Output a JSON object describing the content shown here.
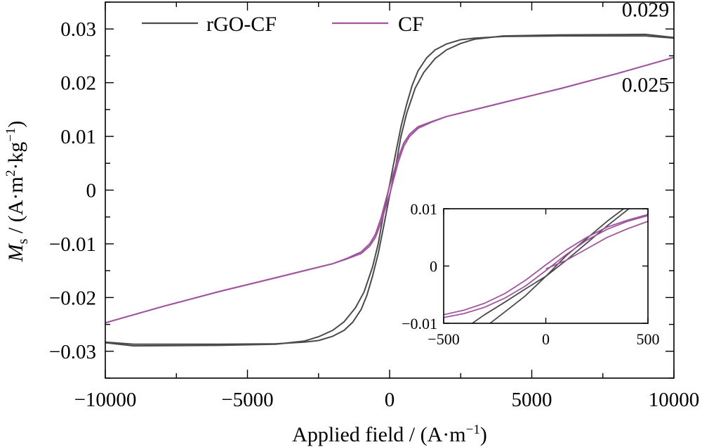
{
  "chart_data": {
    "type": "line",
    "title": "",
    "xlabel": "Applied field / (A·m⁻¹)",
    "ylabel": "Ms / (A·m²·kg⁻¹)",
    "ylabel_parts": {
      "symbol": "M",
      "symbol_sub": "s",
      "units_pre": " / (A·m",
      "sup1": "2",
      "units_mid": "·kg",
      "sup2": "−1",
      "units_post": ")"
    },
    "xlabel_parts": {
      "pre": "Applied field / (A·m",
      "sup": "−1",
      "post": ")"
    },
    "xlim": [
      -10000,
      10000
    ],
    "ylim": [
      -0.035,
      0.035
    ],
    "xticks": [
      -10000,
      -5000,
      0,
      5000,
      10000
    ],
    "xtick_labels": [
      "−10000",
      "−5000",
      "0",
      "5000",
      "10000"
    ],
    "yticks": [
      -0.03,
      -0.02,
      -0.01,
      0,
      0.01,
      0.02,
      0.03
    ],
    "ytick_labels": [
      "−0.03",
      "−0.02",
      "−0.01",
      "0",
      "0.01",
      "0.02",
      "0.03"
    ],
    "grid": false,
    "legend_position": "top-left",
    "series": [
      {
        "name": "rGO-CF",
        "color": "#4a4a4a",
        "branches": [
          {
            "x": [
              -10000,
              -9000,
              -6000,
              -4000,
              -3000,
              -2500,
              -2000,
              -1600,
              -1200,
              -900,
              -600,
              -400,
              -200,
              0,
              200,
              400,
              600,
              800,
              1000,
              1300,
              1600,
              2000,
              2500,
              3000,
              4000,
              6000,
              8000,
              9000,
              10000
            ],
            "y": [
              -0.0284,
              -0.029,
              -0.0289,
              -0.0287,
              -0.0281,
              -0.0273,
              -0.0261,
              -0.0245,
              -0.0219,
              -0.019,
              -0.0143,
              -0.01,
              -0.004,
              0.001,
              0.0065,
              0.0118,
              0.016,
              0.0196,
              0.0222,
              0.0246,
              0.0261,
              0.0272,
              0.028,
              0.0283,
              0.0286,
              0.0287,
              0.0287,
              0.0287,
              0.0283
            ]
          },
          {
            "x": [
              10000,
              9000,
              6000,
              4000,
              3000,
              2500,
              2000,
              1600,
              1200,
              900,
              600,
              400,
              200,
              0,
              -200,
              -400,
              -600,
              -800,
              -1000,
              -1300,
              -1600,
              -2000,
              -2500,
              -3000,
              -4000,
              -6000,
              -8000,
              -9000,
              -10000
            ],
            "y": [
              0.0284,
              0.029,
              0.0289,
              0.0287,
              0.0281,
              0.0273,
              0.0261,
              0.0245,
              0.0219,
              0.019,
              0.0143,
              0.01,
              0.004,
              -0.001,
              -0.0065,
              -0.0118,
              -0.016,
              -0.0196,
              -0.0222,
              -0.0246,
              -0.0261,
              -0.0272,
              -0.028,
              -0.0283,
              -0.0286,
              -0.0287,
              -0.0287,
              -0.0287,
              -0.0283
            ]
          }
        ]
      },
      {
        "name": "CF",
        "color": "#a0569e",
        "branches": [
          {
            "x": [
              -10000,
              -8000,
              -6000,
              -4000,
              -3000,
              -2000,
              -1500,
              -1000,
              -700,
              -500,
              -300,
              -150,
              0,
              150,
              300,
              500,
              700,
              1000,
              1500,
              2000,
              3000,
              4000,
              6000,
              8000,
              10000
            ],
            "y": [
              -0.0247,
              -0.0217,
              -0.0189,
              -0.0163,
              -0.015,
              -0.0137,
              -0.0128,
              -0.0118,
              -0.0104,
              -0.0088,
              -0.006,
              -0.0034,
              -0.0008,
              0.0022,
              0.0052,
              0.0082,
              0.01,
              0.0115,
              0.0127,
              0.0137,
              0.015,
              0.0163,
              0.0189,
              0.0217,
              0.0247
            ]
          },
          {
            "x": [
              10000,
              8000,
              6000,
              4000,
              3000,
              2000,
              1500,
              1000,
              700,
              500,
              300,
              150,
              0,
              -150,
              -300,
              -500,
              -700,
              -1000,
              -1500,
              -2000,
              -3000,
              -4000,
              -6000,
              -8000,
              -10000
            ],
            "y": [
              0.0247,
              0.0217,
              0.0189,
              0.0163,
              0.015,
              0.0137,
              0.0128,
              0.0118,
              0.0104,
              0.0088,
              0.006,
              0.0034,
              0.0008,
              -0.0022,
              -0.0052,
              -0.0082,
              -0.01,
              -0.0115,
              -0.0127,
              -0.0137,
              -0.015,
              -0.0163,
              -0.0189,
              -0.0217,
              -0.0247
            ]
          }
        ]
      }
    ],
    "annotations": [
      {
        "text": "0.029",
        "x": 9000,
        "y": 0.0323
      },
      {
        "text": "0.025",
        "x": 9000,
        "y": 0.0183
      }
    ],
    "inset": {
      "xlim": [
        -500,
        500
      ],
      "ylim": [
        -0.01,
        0.01
      ],
      "xticks": [
        -500,
        0,
        500
      ],
      "xtick_labels": [
        "−500",
        "0",
        "500"
      ],
      "yticks": [
        -0.01,
        0,
        0.01
      ],
      "ytick_labels": [
        "−0.01",
        "0",
        "0.01"
      ],
      "series": [
        {
          "name": "rGO-CF",
          "color": "#4a4a4a",
          "branches": [
            {
              "x": [
                -380,
                -300,
                -200,
                -100,
                0,
                100,
                200,
                300,
                400,
                500
              ],
              "y": [
                -0.0105,
                -0.0085,
                -0.0063,
                -0.004,
                -0.0018,
                0.001,
                0.004,
                0.007,
                0.0098,
                0.0125
              ]
            },
            {
              "x": [
                -280,
                -200,
                -100,
                0,
                100,
                200,
                300,
                400,
                500
              ],
              "y": [
                -0.0102,
                -0.008,
                -0.0052,
                -0.0018,
                0.0018,
                0.0048,
                0.0078,
                0.0105,
                0.0125
              ]
            }
          ]
        },
        {
          "name": "CF",
          "color": "#a0569e",
          "branches": [
            {
              "x": [
                -500,
                -400,
                -300,
                -200,
                -100,
                0,
                100,
                200,
                300,
                400,
                500
              ],
              "y": [
                -0.009,
                -0.0083,
                -0.0072,
                -0.0056,
                -0.0035,
                -0.0008,
                0.002,
                0.0045,
                0.0064,
                0.0078,
                0.0088
              ]
            },
            {
              "x": [
                -500,
                -400,
                -300,
                -200,
                -100,
                0,
                100,
                200,
                300,
                400,
                500
              ],
              "y": [
                -0.0085,
                -0.0077,
                -0.0065,
                -0.0048,
                -0.0025,
                0.0002,
                0.0028,
                0.005,
                0.0068,
                0.008,
                0.009
              ]
            },
            {
              "x": [
                0,
                100,
                200,
                300,
                400,
                500
              ],
              "y": [
                -0.0005,
                0.001,
                0.003,
                0.005,
                0.0065,
                0.0078
              ]
            }
          ]
        }
      ]
    }
  }
}
